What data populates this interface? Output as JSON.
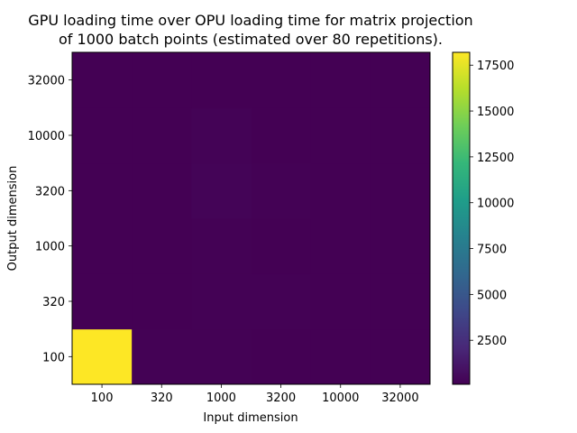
{
  "chart_data": {
    "type": "heatmap",
    "title_line1": "GPU loading time over OPU loading time for matrix projection",
    "title_line2": "of 1000 batch points (estimated over 80 repetitions).",
    "xlabel": "Input dimension",
    "ylabel": "Output dimension",
    "x_categories": [
      "100",
      "320",
      "1000",
      "3200",
      "10000",
      "32000"
    ],
    "y_categories": [
      "100",
      "320",
      "1000",
      "3200",
      "10000",
      "32000"
    ],
    "values": [
      [
        18200,
        140,
        130,
        120,
        110,
        100
      ],
      [
        110,
        105,
        170,
        150,
        120,
        110
      ],
      [
        110,
        120,
        140,
        110,
        100,
        100
      ],
      [
        120,
        120,
        280,
        160,
        100,
        100
      ],
      [
        120,
        120,
        220,
        100,
        100,
        100
      ],
      [
        110,
        110,
        110,
        100,
        100,
        100
      ]
    ],
    "colorbar": {
      "min": 100,
      "max": 18200,
      "ticks": [
        2500,
        5000,
        7500,
        10000,
        12500,
        15000,
        17500
      ],
      "colormap": "viridis"
    }
  }
}
